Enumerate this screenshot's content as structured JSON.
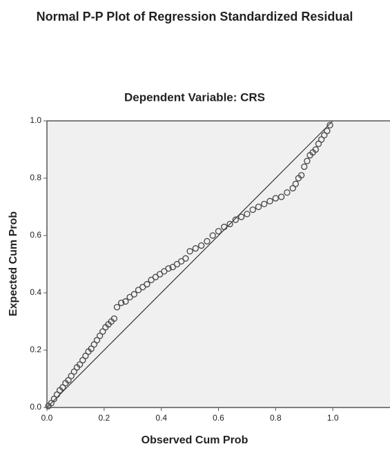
{
  "chart_data": {
    "type": "scatter",
    "title": "Normal P-P Plot of Regression Standardized Residual",
    "subtitle": "Dependent Variable: CRS",
    "x_label": "Observed Cum Prob",
    "y_label": "Expected Cum Prob",
    "color": "#444444",
    "xlim": [
      0,
      1.2
    ],
    "ylim": [
      0,
      1
    ],
    "xticks": [
      {
        "value": 0,
        "label": "0.0"
      },
      0.2,
      0.4,
      0.6,
      0.8,
      {
        "value": 1,
        "label": "1.0"
      }
    ],
    "yticks": [
      {
        "value": 0,
        "label": "0.0"
      },
      0.2,
      0.4,
      0.6,
      0.8,
      {
        "value": 1,
        "label": "1.0"
      }
    ],
    "x": [
      0.005,
      0.015,
      0.025,
      0.035,
      0.045,
      0.055,
      0.065,
      0.075,
      0.085,
      0.095,
      0.105,
      0.115,
      0.125,
      0.135,
      0.145,
      0.155,
      0.165,
      0.175,
      0.185,
      0.195,
      0.205,
      0.215,
      0.225,
      0.235,
      0.245,
      0.26,
      0.275,
      0.29,
      0.305,
      0.32,
      0.335,
      0.35,
      0.365,
      0.38,
      0.395,
      0.41,
      0.425,
      0.44,
      0.455,
      0.47,
      0.485,
      0.5,
      0.52,
      0.54,
      0.56,
      0.58,
      0.6,
      0.62,
      0.64,
      0.66,
      0.68,
      0.7,
      0.72,
      0.74,
      0.76,
      0.78,
      0.8,
      0.82,
      0.84,
      0.86,
      0.87,
      0.88,
      0.89,
      0.9,
      0.91,
      0.92,
      0.93,
      0.94,
      0.95,
      0.96,
      0.97,
      0.98,
      0.99
    ],
    "y": [
      0.005,
      0.015,
      0.03,
      0.045,
      0.06,
      0.07,
      0.085,
      0.095,
      0.11,
      0.125,
      0.14,
      0.15,
      0.165,
      0.18,
      0.195,
      0.205,
      0.22,
      0.235,
      0.25,
      0.265,
      0.28,
      0.29,
      0.3,
      0.31,
      0.35,
      0.365,
      0.37,
      0.385,
      0.395,
      0.41,
      0.42,
      0.43,
      0.445,
      0.455,
      0.465,
      0.475,
      0.485,
      0.49,
      0.5,
      0.51,
      0.52,
      0.545,
      0.555,
      0.565,
      0.58,
      0.6,
      0.615,
      0.63,
      0.64,
      0.655,
      0.665,
      0.675,
      0.69,
      0.7,
      0.71,
      0.72,
      0.73,
      0.735,
      0.75,
      0.765,
      0.78,
      0.8,
      0.81,
      0.84,
      0.86,
      0.88,
      0.89,
      0.9,
      0.92,
      0.935,
      0.95,
      0.965,
      0.985
    ]
  }
}
